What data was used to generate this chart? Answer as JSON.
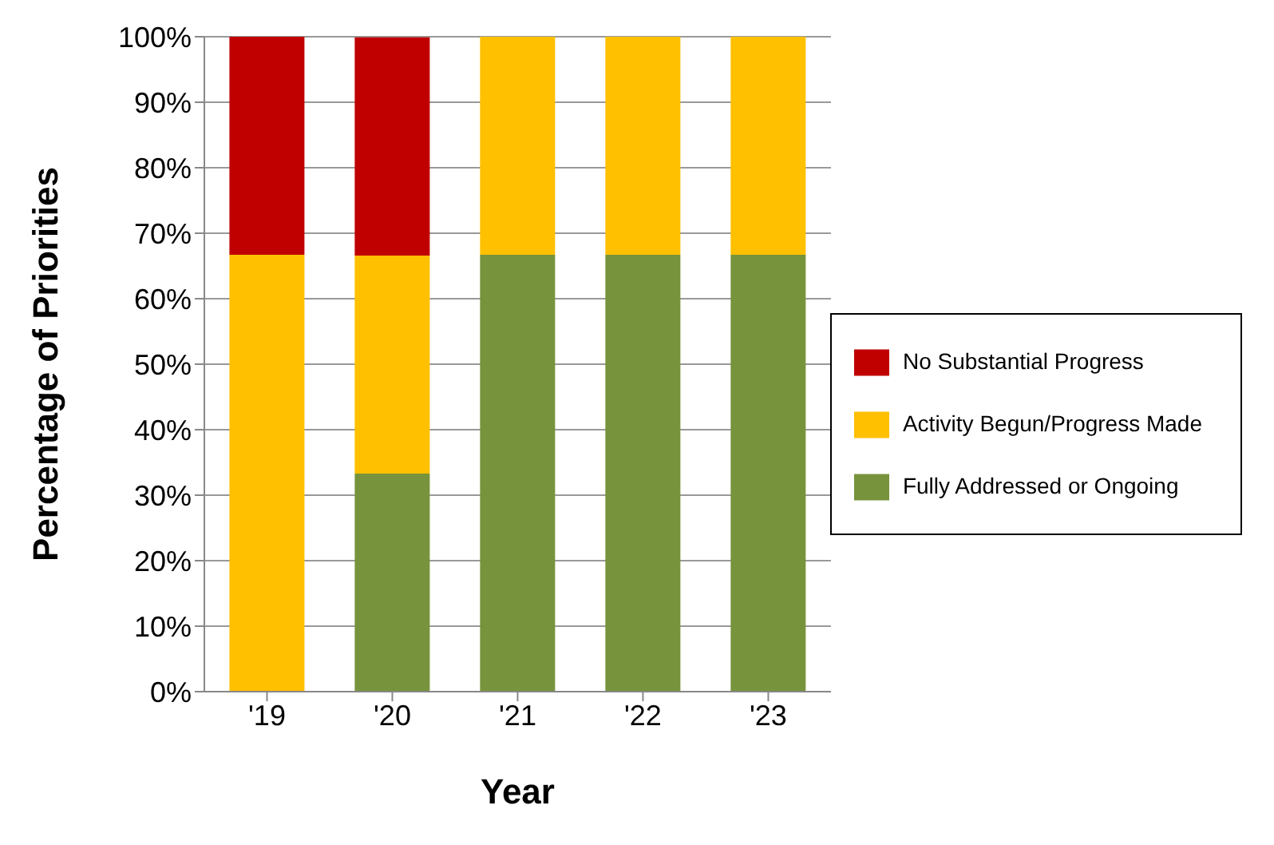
{
  "chart_data": {
    "type": "bar",
    "stacked": true,
    "xlabel": "Year",
    "ylabel": "Percentage of Priorities",
    "categories": [
      "'19",
      "'20",
      "'21",
      "'22",
      "'23"
    ],
    "series": [
      {
        "name": "Fully Addressed or Ongoing",
        "color": "#77933c",
        "values": [
          0,
          33.3,
          66.7,
          66.7,
          66.7
        ]
      },
      {
        "name": "Activity Begun/Progress Made",
        "color": "#ffc000",
        "values": [
          66.7,
          33.3,
          33.3,
          33.3,
          33.3
        ]
      },
      {
        "name": "No Substantial Progress",
        "color": "#c00000",
        "values": [
          33.3,
          33.3,
          0,
          0,
          0
        ]
      }
    ],
    "ylim": [
      0,
      100
    ],
    "yticks": [
      {
        "value": 0,
        "label": "0%"
      },
      {
        "value": 10,
        "label": "10%"
      },
      {
        "value": 20,
        "label": "20%"
      },
      {
        "value": 30,
        "label": "30%"
      },
      {
        "value": 40,
        "label": "40%"
      },
      {
        "value": 50,
        "label": "50%"
      },
      {
        "value": 60,
        "label": "60%"
      },
      {
        "value": 70,
        "label": "70%"
      },
      {
        "value": 80,
        "label": "80%"
      },
      {
        "value": 90,
        "label": "90%"
      },
      {
        "value": 100,
        "label": "100%"
      }
    ],
    "grid": "y",
    "legend": "right"
  }
}
